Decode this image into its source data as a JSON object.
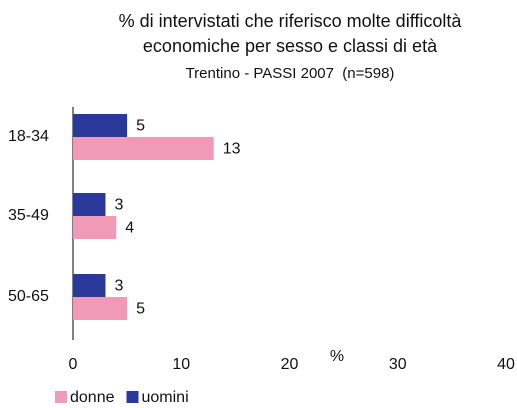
{
  "chart_data": {
    "type": "hbar",
    "title": [
      "% di intervistati che riferisco molte difficoltà",
      "economiche per sesso e classi di età"
    ],
    "subtitle": "Trentino - PASSI 2007  (n=598)",
    "x_label": "%",
    "categories": [
      "18-34",
      "35-49",
      "50-65"
    ],
    "series": [
      {
        "name": "donne",
        "color": "#f09ab8",
        "values": [
          13,
          4,
          5
        ]
      },
      {
        "name": "uomini",
        "color": "#2b3a9a",
        "values": [
          5,
          3,
          3
        ]
      }
    ],
    "xlim": [
      0,
      40
    ],
    "xticks": [
      0,
      10,
      20,
      30,
      40
    ],
    "legend": "bottom-left"
  }
}
